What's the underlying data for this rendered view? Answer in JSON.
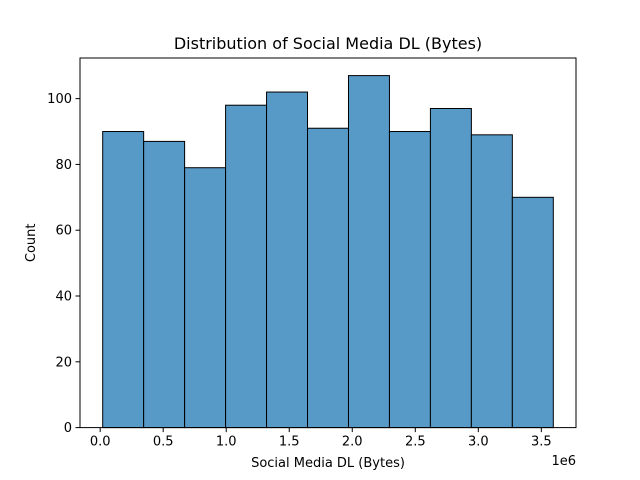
{
  "chart_data": {
    "type": "bar",
    "title": "Distribution of Social Media DL (Bytes)",
    "xlabel": "Social Media DL (Bytes)",
    "ylabel": "Count",
    "x_offset_label": "1e6",
    "bin_edges": [
      0.02,
      0.345,
      0.67,
      0.995,
      1.32,
      1.645,
      1.97,
      2.295,
      2.62,
      2.945,
      3.27,
      3.595
    ],
    "values": [
      90,
      87,
      79,
      98,
      102,
      91,
      107,
      90,
      97,
      89,
      70
    ],
    "xlim": [
      -0.16,
      3.775
    ],
    "ylim": [
      0,
      112.35
    ],
    "x_ticks": [
      0.0,
      0.5,
      1.0,
      1.5,
      2.0,
      2.5,
      3.0,
      3.5
    ],
    "x_tick_labels": [
      "0.0",
      "0.5",
      "1.0",
      "1.5",
      "2.0",
      "2.5",
      "3.0",
      "3.5"
    ],
    "y_ticks": [
      0,
      20,
      40,
      60,
      80,
      100
    ],
    "y_tick_labels": [
      "0",
      "20",
      "40",
      "60",
      "80",
      "100"
    ],
    "bar_color": "#5799c7",
    "edge_color": "#000000",
    "grid": false,
    "legend": "none"
  }
}
